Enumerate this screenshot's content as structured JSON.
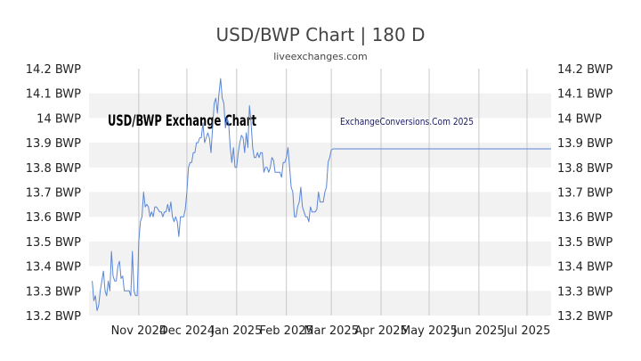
{
  "chart_data": {
    "type": "line",
    "title": "USD/BWP Chart | 180 D",
    "subtitle": "liveexchanges.com",
    "watermark_left": "USD/BWP Exchange Chart",
    "watermark_right": "ExchangeConversions.Com 2025",
    "ylim": [
      13.2,
      14.2
    ],
    "y_ticks": [
      "13.2 BWP",
      "13.3 BWP",
      "13.4 BWP",
      "13.5 BWP",
      "13.6 BWP",
      "13.7 BWP",
      "13.8 BWP",
      "13.9 BWP",
      "14 BWP",
      "14.1 BWP",
      "14.2 BWP"
    ],
    "y_tick_values": [
      13.2,
      13.3,
      13.4,
      13.5,
      13.6,
      13.7,
      13.8,
      13.9,
      14.0,
      14.1,
      14.2
    ],
    "x_ticks": [
      "Nov 2024",
      "Dec 2024",
      "Jan 2025",
      "Feb 2025",
      "Mar 2025",
      "Apr 2025",
      "May 2025",
      "Jun 2025",
      "Jul 2025"
    ],
    "x_tick_days": [
      31,
      61,
      92,
      123,
      151,
      182,
      212,
      243,
      273
    ],
    "x_range_days": [
      0,
      288
    ],
    "x_day_note": "days from 2024-10-01",
    "grid": "horizontal bands + vertical lines",
    "line_color": "#5b86d6",
    "series": [
      {
        "name": "",
        "values": [
          [
            2,
            13.34
          ],
          [
            3,
            13.26
          ],
          [
            4,
            13.28
          ],
          [
            5,
            13.22
          ],
          [
            6,
            13.24
          ],
          [
            7,
            13.3
          ],
          [
            8,
            13.34
          ],
          [
            9,
            13.38
          ],
          [
            10,
            13.3
          ],
          [
            11,
            13.28
          ],
          [
            12,
            13.34
          ],
          [
            13,
            13.3
          ],
          [
            14,
            13.46
          ],
          [
            15,
            13.36
          ],
          [
            16,
            13.34
          ],
          [
            17,
            13.34
          ],
          [
            18,
            13.4
          ],
          [
            19,
            13.42
          ],
          [
            20,
            13.35
          ],
          [
            21,
            13.36
          ],
          [
            22,
            13.3
          ],
          [
            23,
            13.3
          ],
          [
            24,
            13.3
          ],
          [
            25,
            13.3
          ],
          [
            26,
            13.28
          ],
          [
            27,
            13.46
          ],
          [
            28,
            13.3
          ],
          [
            29,
            13.28
          ],
          [
            30,
            13.28
          ],
          [
            31,
            13.5
          ],
          [
            32,
            13.58
          ],
          [
            33,
            13.6
          ],
          [
            34,
            13.7
          ],
          [
            35,
            13.64
          ],
          [
            36,
            13.65
          ],
          [
            37,
            13.64
          ],
          [
            38,
            13.6
          ],
          [
            39,
            13.62
          ],
          [
            40,
            13.6
          ],
          [
            41,
            13.64
          ],
          [
            42,
            13.64
          ],
          [
            43,
            13.63
          ],
          [
            44,
            13.62
          ],
          [
            45,
            13.62
          ],
          [
            46,
            13.6
          ],
          [
            47,
            13.62
          ],
          [
            48,
            13.62
          ],
          [
            49,
            13.65
          ],
          [
            50,
            13.62
          ],
          [
            51,
            13.66
          ],
          [
            52,
            13.6
          ],
          [
            53,
            13.58
          ],
          [
            54,
            13.6
          ],
          [
            55,
            13.58
          ],
          [
            56,
            13.52
          ],
          [
            57,
            13.6
          ],
          [
            58,
            13.6
          ],
          [
            59,
            13.6
          ],
          [
            60,
            13.63
          ],
          [
            61,
            13.7
          ],
          [
            62,
            13.8
          ],
          [
            63,
            13.82
          ],
          [
            64,
            13.82
          ],
          [
            65,
            13.86
          ],
          [
            66,
            13.86
          ],
          [
            67,
            13.9
          ],
          [
            68,
            13.9
          ],
          [
            69,
            13.92
          ],
          [
            70,
            13.92
          ],
          [
            71,
            13.98
          ],
          [
            72,
            13.9
          ],
          [
            73,
            13.92
          ],
          [
            74,
            13.94
          ],
          [
            75,
            13.92
          ],
          [
            76,
            13.86
          ],
          [
            77,
            13.96
          ],
          [
            78,
            14.06
          ],
          [
            79,
            14.08
          ],
          [
            80,
            14.02
          ],
          [
            81,
            14.1
          ],
          [
            82,
            14.16
          ],
          [
            83,
            14.08
          ],
          [
            84,
            14.06
          ],
          [
            85,
            13.96
          ],
          [
            86,
            14.0
          ],
          [
            87,
            13.98
          ],
          [
            88,
            13.88
          ],
          [
            89,
            13.82
          ],
          [
            90,
            13.88
          ],
          [
            91,
            13.8
          ],
          [
            92,
            13.8
          ],
          [
            93,
            13.86
          ],
          [
            94,
            13.9
          ],
          [
            95,
            13.93
          ],
          [
            96,
            13.92
          ],
          [
            97,
            13.86
          ],
          [
            98,
            13.94
          ],
          [
            99,
            13.88
          ],
          [
            100,
            14.05
          ],
          [
            101,
            13.98
          ],
          [
            102,
            13.88
          ],
          [
            103,
            13.84
          ],
          [
            104,
            13.84
          ],
          [
            105,
            13.86
          ],
          [
            106,
            13.84
          ],
          [
            107,
            13.86
          ],
          [
            108,
            13.86
          ],
          [
            109,
            13.78
          ],
          [
            110,
            13.8
          ],
          [
            111,
            13.8
          ],
          [
            112,
            13.78
          ],
          [
            113,
            13.8
          ],
          [
            114,
            13.84
          ],
          [
            115,
            13.83
          ],
          [
            116,
            13.78
          ],
          [
            117,
            13.78
          ],
          [
            118,
            13.78
          ],
          [
            119,
            13.78
          ],
          [
            120,
            13.76
          ],
          [
            121,
            13.82
          ],
          [
            122,
            13.82
          ],
          [
            123,
            13.84
          ],
          [
            124,
            13.88
          ],
          [
            125,
            13.8
          ],
          [
            126,
            13.72
          ],
          [
            127,
            13.7
          ],
          [
            128,
            13.6
          ],
          [
            129,
            13.6
          ],
          [
            130,
            13.64
          ],
          [
            131,
            13.66
          ],
          [
            132,
            13.72
          ],
          [
            133,
            13.64
          ],
          [
            134,
            13.62
          ],
          [
            135,
            13.6
          ],
          [
            136,
            13.6
          ],
          [
            137,
            13.58
          ],
          [
            138,
            13.64
          ],
          [
            139,
            13.62
          ],
          [
            140,
            13.62
          ],
          [
            141,
            13.62
          ],
          [
            142,
            13.63
          ],
          [
            143,
            13.7
          ],
          [
            144,
            13.66
          ],
          [
            145,
            13.66
          ],
          [
            146,
            13.66
          ],
          [
            147,
            13.7
          ],
          [
            148,
            13.72
          ],
          [
            149,
            13.82
          ],
          [
            150,
            13.84
          ],
          [
            151,
            13.87
          ],
          [
            152,
            13.875
          ],
          [
            160,
            13.875
          ],
          [
            180,
            13.875
          ],
          [
            200,
            13.875
          ],
          [
            220,
            13.875
          ],
          [
            240,
            13.875
          ],
          [
            260,
            13.875
          ],
          [
            280,
            13.875
          ],
          [
            288,
            13.875
          ]
        ]
      }
    ]
  }
}
